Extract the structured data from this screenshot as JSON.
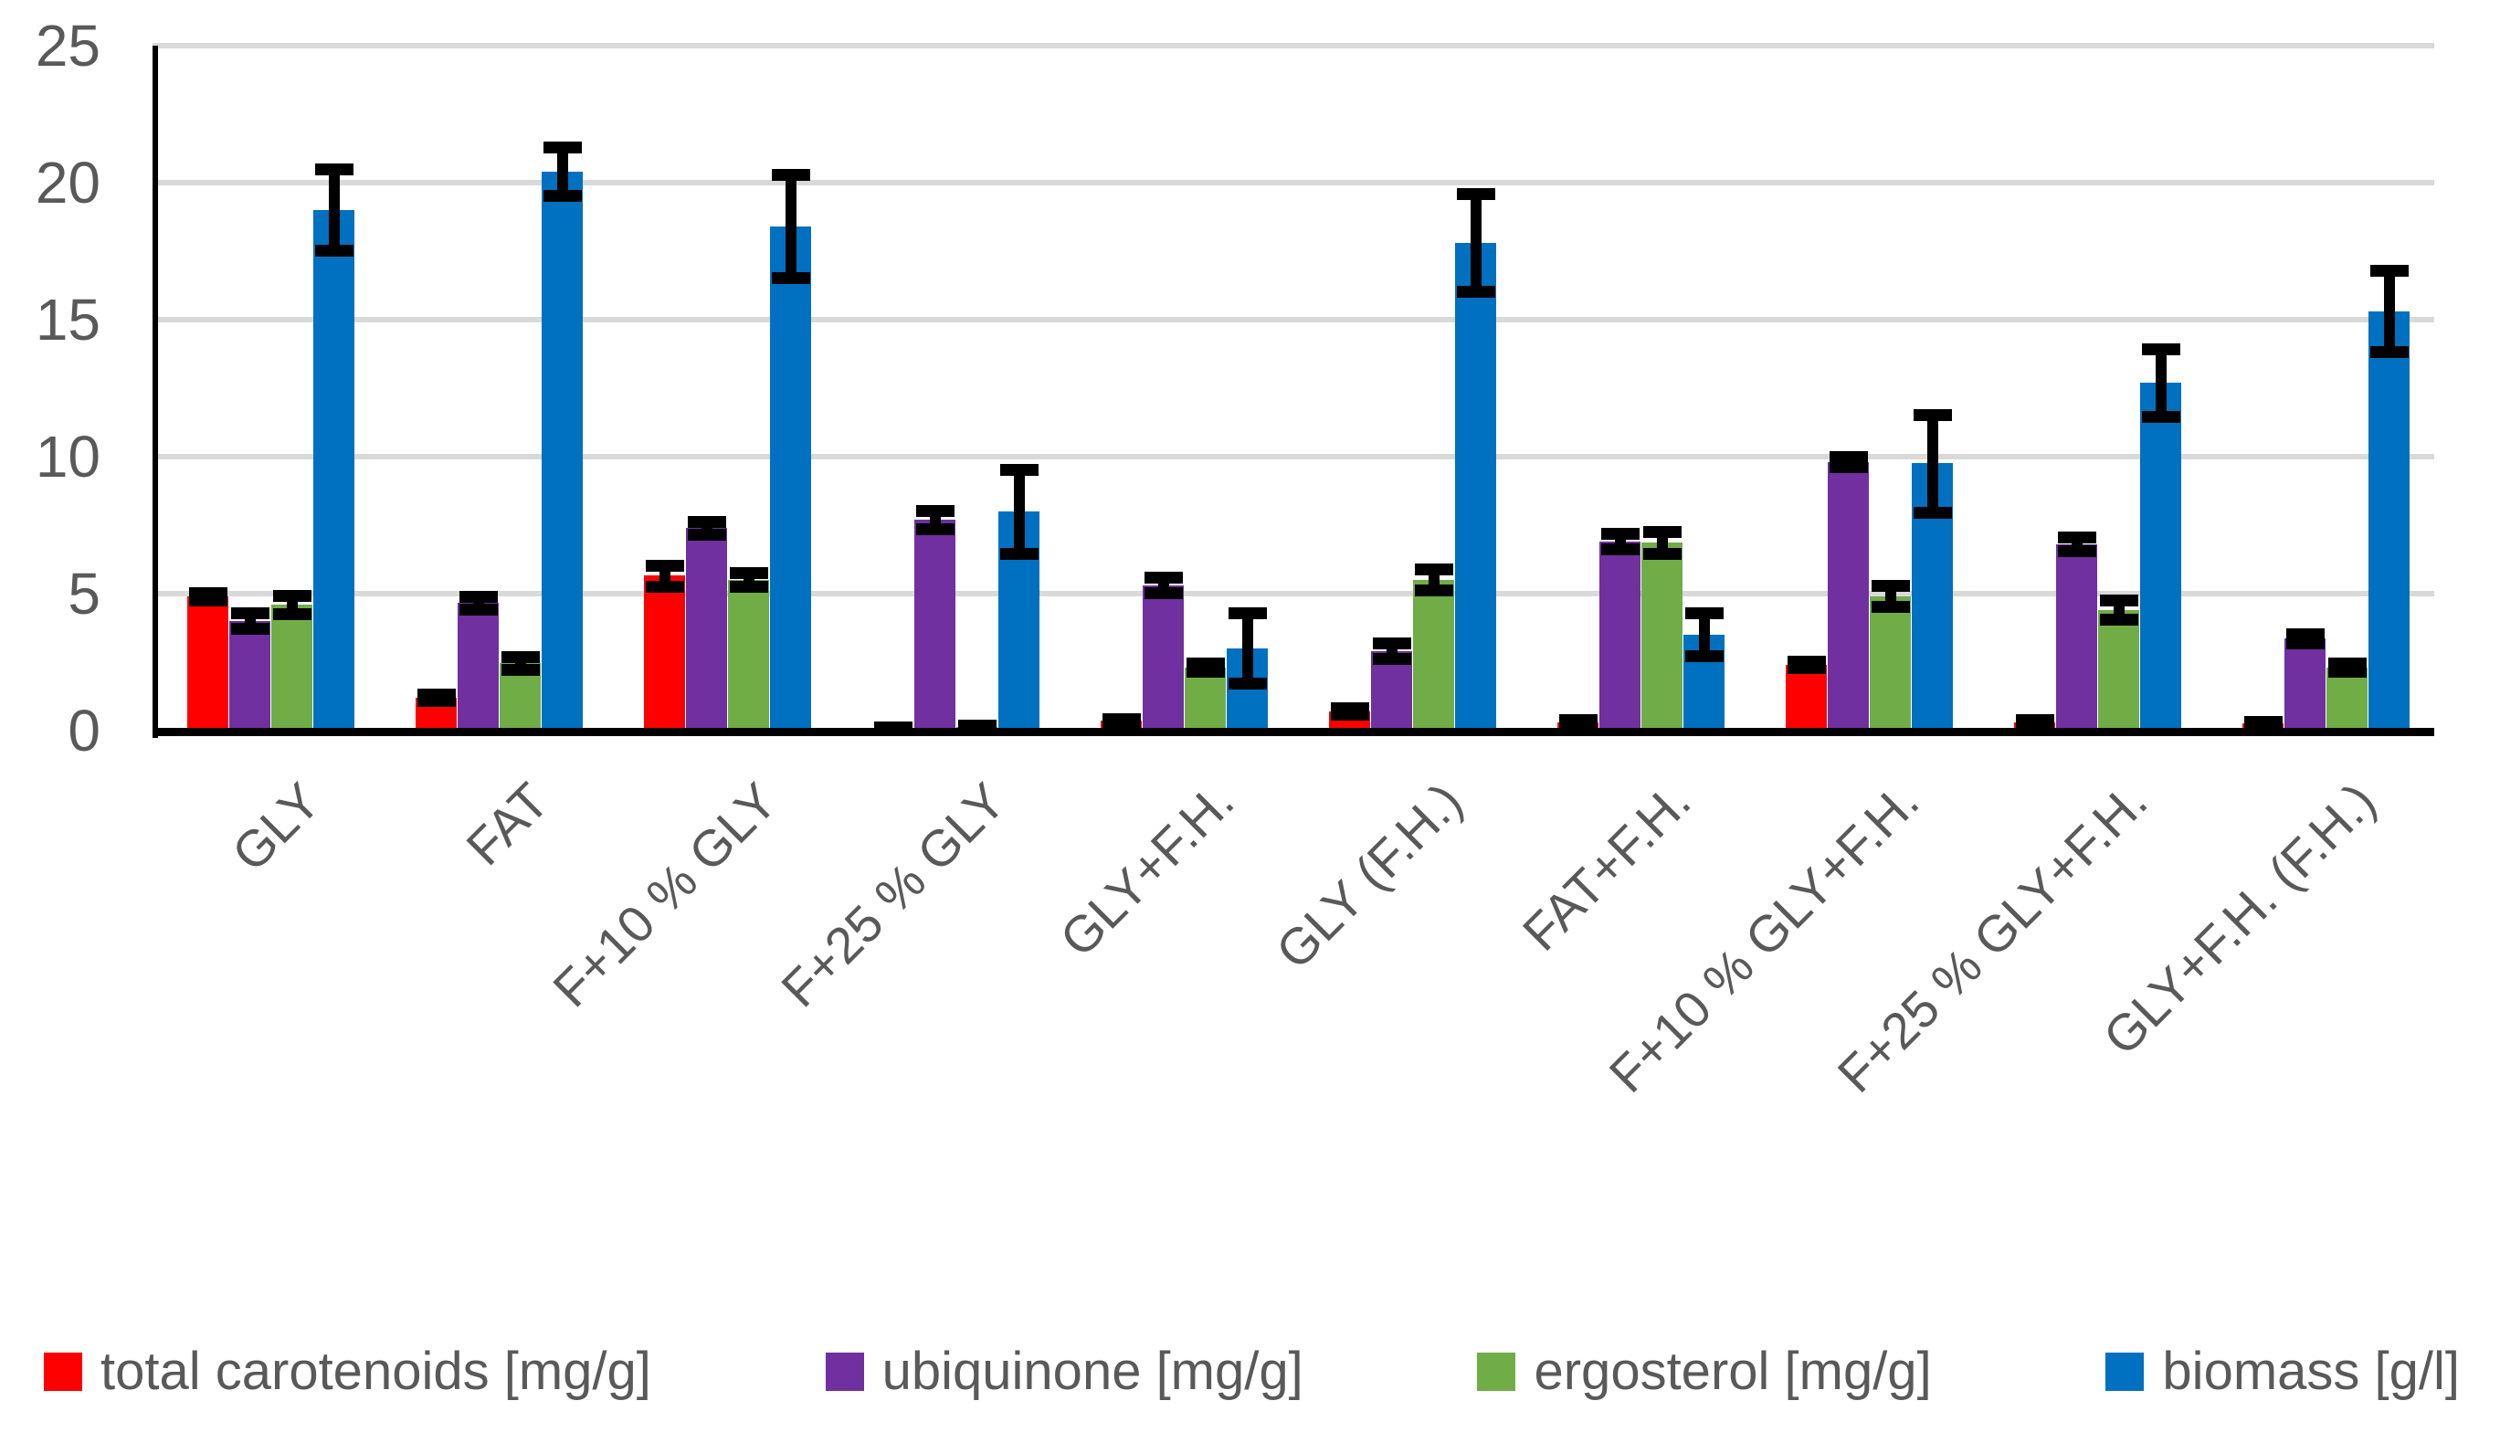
{
  "chart_data": {
    "type": "bar",
    "title": "",
    "xlabel": "",
    "ylabel": "",
    "categories": [
      "GLY",
      "FAT",
      "F+10 % GLY",
      "F+25 % GLY",
      "GLY+F.H.",
      "GLY (F.H.)",
      "FAT+F.H.",
      "F+10 % GLY+F.H.",
      "F+25 % GLY+F.H.",
      "GLY+F.H. (F.H.)"
    ],
    "series": [
      {
        "name": "total carotenoids [mg/g]",
        "color": "#FF0000",
        "values": [
          4.9,
          1.2,
          5.65,
          0.08,
          0.35,
          0.7,
          0.3,
          2.4,
          0.3,
          0.25
        ],
        "errors": [
          0.15,
          0.12,
          0.4,
          0.06,
          0.1,
          0.12,
          0.1,
          0.12,
          0.1,
          0.08
        ]
      },
      {
        "name": "ubiquinone [mg/g]",
        "color": "#7030A0",
        "values": [
          4.0,
          4.65,
          7.4,
          7.7,
          5.3,
          2.9,
          6.9,
          9.8,
          6.8,
          3.35
        ],
        "errors": [
          0.3,
          0.25,
          0.25,
          0.35,
          0.3,
          0.3,
          0.3,
          0.2,
          0.28,
          0.18
        ]
      },
      {
        "name": "ergosterol [mg/g]",
        "color": "#70AD47",
        "values": [
          4.6,
          2.45,
          5.5,
          0.12,
          2.3,
          5.5,
          6.85,
          4.9,
          4.4,
          2.3
        ],
        "errors": [
          0.35,
          0.25,
          0.28,
          0.08,
          0.18,
          0.4,
          0.42,
          0.4,
          0.38,
          0.18
        ]
      },
      {
        "name": "biomass [g/l]",
        "color": "#0070C0",
        "values": [
          19.0,
          20.4,
          18.4,
          8.0,
          3.0,
          17.8,
          3.5,
          9.75,
          12.7,
          15.3
        ],
        "errors": [
          1.5,
          0.9,
          1.9,
          1.55,
          1.3,
          1.8,
          0.8,
          1.8,
          1.25,
          1.5
        ]
      }
    ],
    "ylim": [
      0,
      25
    ],
    "yticks": [
      0,
      5,
      10,
      15,
      20,
      25
    ],
    "grid": "horizontal",
    "error_bars": true,
    "legend_position": "bottom"
  },
  "colors": {
    "grid": "#D9D9D9",
    "axis": "#000000",
    "text": "#595959",
    "background": "#FFFFFF"
  }
}
